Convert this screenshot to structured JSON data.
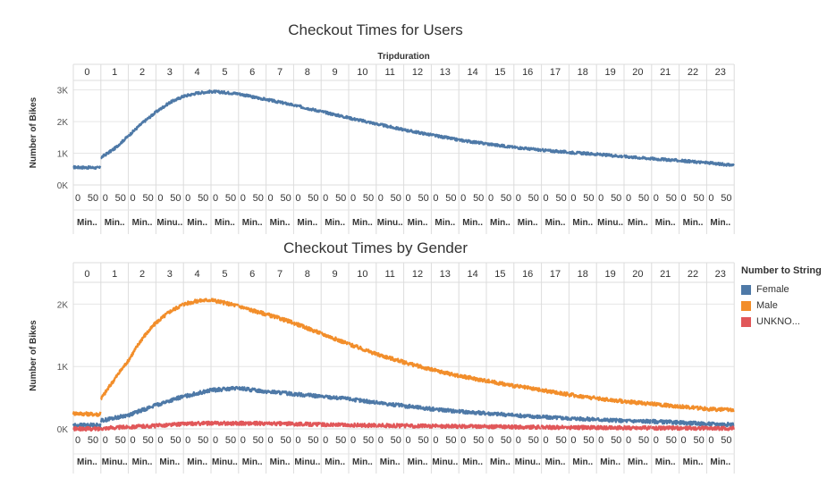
{
  "chart_data": [
    {
      "type": "line",
      "title": "Checkout Times for Users",
      "column_header": "Tripduration",
      "ylabel": "Number of Bikes",
      "ylim": [
        0,
        3300
      ],
      "yticks": [
        0,
        1000,
        2000,
        3000
      ],
      "ytick_labels": [
        "0K",
        "1K",
        "2K",
        "3K"
      ],
      "hour_labels": [
        "0",
        "1",
        "2",
        "3",
        "4",
        "5",
        "6",
        "7",
        "8",
        "9",
        "10",
        "11",
        "12",
        "13",
        "14",
        "15",
        "16",
        "17",
        "18",
        "19",
        "20",
        "21",
        "22",
        "23"
      ],
      "minute_tick_labels": [
        "0",
        "50"
      ],
      "bottom_labels": [
        "Min..",
        "Min..",
        "Min..",
        "Minu..",
        "Min..",
        "Min..",
        "Min..",
        "Min..",
        "Min..",
        "Min..",
        "Min..",
        "Minu..",
        "Min..",
        "Min..",
        "Min..",
        "Min..",
        "Min..",
        "Min..",
        "Min..",
        "Minu..",
        "Min..",
        "Min..",
        "Min..",
        "Min.."
      ],
      "grid": true,
      "legend": "none",
      "series": [
        {
          "color": "#4e79a7",
          "x": [
            0,
            0.5,
            0.98,
            1.0,
            1.5,
            2.0,
            2.5,
            3.0,
            3.5,
            4.0,
            4.5,
            5.0,
            5.5,
            6.0,
            6.5,
            7.0,
            8.0,
            9.0,
            10.0,
            11.0,
            12.0,
            13.0,
            14.0,
            15.0,
            16.0,
            17.0,
            18.0,
            19.0,
            20.0,
            21.0,
            22.0,
            23.0,
            23.98
          ],
          "y": [
            560,
            550,
            540,
            860,
            1150,
            1550,
            1950,
            2300,
            2600,
            2800,
            2900,
            2950,
            2920,
            2880,
            2780,
            2700,
            2520,
            2320,
            2120,
            1930,
            1740,
            1580,
            1420,
            1300,
            1190,
            1100,
            1030,
            970,
            900,
            830,
            770,
            700,
            620
          ]
        }
      ]
    },
    {
      "type": "line",
      "title": "Checkout Times by Gender",
      "column_header": "",
      "ylabel": "Number of Bikes",
      "ylim": [
        0,
        2350
      ],
      "yticks": [
        0,
        1000,
        2000
      ],
      "ytick_labels": [
        "0K",
        "1K",
        "2K"
      ],
      "hour_labels": [
        "0",
        "1",
        "2",
        "3",
        "4",
        "5",
        "6",
        "7",
        "8",
        "9",
        "10",
        "11",
        "12",
        "13",
        "14",
        "15",
        "16",
        "17",
        "18",
        "19",
        "20",
        "21",
        "22",
        "23"
      ],
      "minute_tick_labels": [
        "0",
        "50"
      ],
      "bottom_labels": [
        "Min..",
        "Minu..",
        "Min..",
        "Min..",
        "Min..",
        "Minu..",
        "Min..",
        "Min..",
        "Minu..",
        "Min..",
        "Min..",
        "Min..",
        "Min..",
        "Minu..",
        "Min..",
        "Min..",
        "Minu..",
        "Min..",
        "Min..",
        "Min..",
        "Min..",
        "Min..",
        "Min..",
        "Min.."
      ],
      "grid": true,
      "legend": "right",
      "legend_title": "Number to String",
      "series": [
        {
          "name": "Male",
          "color": "#f28e2b",
          "x": [
            0,
            0.5,
            0.98,
            1.0,
            1.5,
            2.0,
            2.5,
            3.0,
            3.5,
            4.0,
            4.5,
            5.0,
            5.5,
            6.0,
            6.5,
            7.0,
            8.0,
            9.0,
            10.0,
            11.0,
            12.0,
            13.0,
            14.0,
            15.0,
            16.0,
            17.0,
            18.0,
            19.0,
            20.0,
            21.0,
            22.0,
            23.0,
            23.98
          ],
          "y": [
            250,
            240,
            230,
            480,
            800,
            1100,
            1450,
            1700,
            1880,
            2000,
            2050,
            2070,
            2020,
            1970,
            1900,
            1840,
            1700,
            1530,
            1360,
            1200,
            1070,
            950,
            850,
            770,
            690,
            620,
            550,
            490,
            440,
            400,
            360,
            320,
            300
          ]
        },
        {
          "name": "Female",
          "color": "#4e79a7",
          "x": [
            0,
            0.98,
            1.0,
            2.0,
            3.0,
            4.0,
            5.0,
            6.0,
            7.0,
            8.0,
            9.0,
            10.0,
            11.0,
            12.0,
            13.0,
            14.0,
            15.0,
            16.0,
            17.0,
            18.0,
            19.0,
            20.0,
            21.0,
            22.0,
            23.0,
            23.98
          ],
          "y": [
            60,
            60,
            130,
            220,
            380,
            520,
            620,
            650,
            600,
            560,
            520,
            480,
            420,
            370,
            320,
            280,
            250,
            220,
            190,
            170,
            150,
            130,
            120,
            100,
            80,
            70
          ]
        },
        {
          "name": "UNKNO...",
          "color": "#e15759",
          "x": [
            0,
            0.98,
            1.0,
            2.0,
            3.0,
            4.0,
            5.0,
            6.0,
            7.0,
            8.0,
            9.0,
            10.0,
            11.0,
            12.0,
            13.0,
            14.0,
            15.0,
            16.0,
            17.0,
            18.0,
            19.0,
            20.0,
            21.0,
            22.0,
            23.0,
            23.98
          ],
          "y": [
            0,
            0,
            10,
            30,
            50,
            80,
            90,
            90,
            85,
            80,
            70,
            60,
            55,
            50,
            45,
            40,
            35,
            30,
            25,
            22,
            20,
            18,
            15,
            12,
            10,
            8
          ]
        }
      ]
    }
  ],
  "legend": {
    "title": "Number to String",
    "items": [
      {
        "label": "Female",
        "color": "#4e79a7"
      },
      {
        "label": "Male",
        "color": "#f28e2b"
      },
      {
        "label": "UNKNO...",
        "color": "#e15759"
      }
    ]
  }
}
